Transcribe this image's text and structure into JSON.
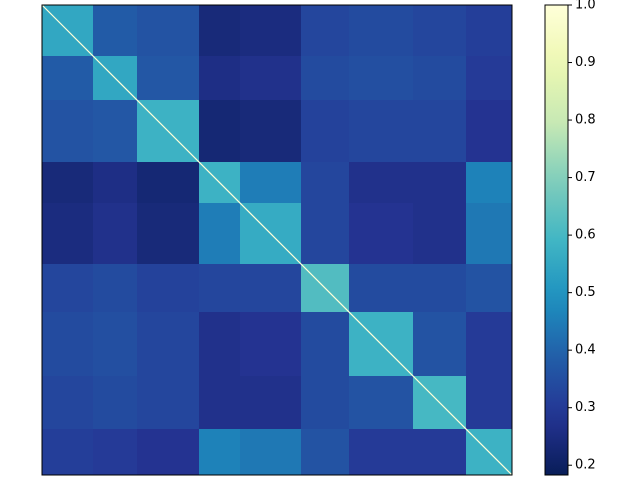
{
  "chart_data": {
    "type": "heatmap",
    "colormap": "YlGnBu",
    "edges": [
      0,
      51,
      95,
      157,
      198,
      259,
      307,
      371,
      424,
      470
    ],
    "z": [
      [
        0.55,
        0.38,
        0.36,
        0.24,
        0.25,
        0.33,
        0.34,
        0.33,
        0.31
      ],
      [
        0.38,
        0.55,
        0.37,
        0.26,
        0.27,
        0.34,
        0.35,
        0.34,
        0.3
      ],
      [
        0.36,
        0.37,
        0.58,
        0.23,
        0.24,
        0.32,
        0.33,
        0.33,
        0.28
      ],
      [
        0.24,
        0.26,
        0.23,
        0.58,
        0.45,
        0.33,
        0.27,
        0.27,
        0.46
      ],
      [
        0.25,
        0.27,
        0.24,
        0.45,
        0.56,
        0.33,
        0.28,
        0.27,
        0.44
      ],
      [
        0.33,
        0.34,
        0.32,
        0.33,
        0.33,
        0.62,
        0.34,
        0.34,
        0.36
      ],
      [
        0.34,
        0.35,
        0.33,
        0.27,
        0.28,
        0.34,
        0.58,
        0.36,
        0.3
      ],
      [
        0.33,
        0.34,
        0.33,
        0.27,
        0.27,
        0.34,
        0.36,
        0.6,
        0.3
      ],
      [
        0.31,
        0.3,
        0.28,
        0.46,
        0.44,
        0.36,
        0.3,
        0.3,
        0.58
      ]
    ],
    "diagonal": 1.0,
    "zlim": [
      0.183,
      1.0
    ],
    "zticks": [
      0.2,
      0.3,
      0.4,
      0.5,
      0.6,
      0.7,
      0.8,
      0.9,
      {
        "value": 1.0,
        "label": "1.0"
      }
    ]
  }
}
